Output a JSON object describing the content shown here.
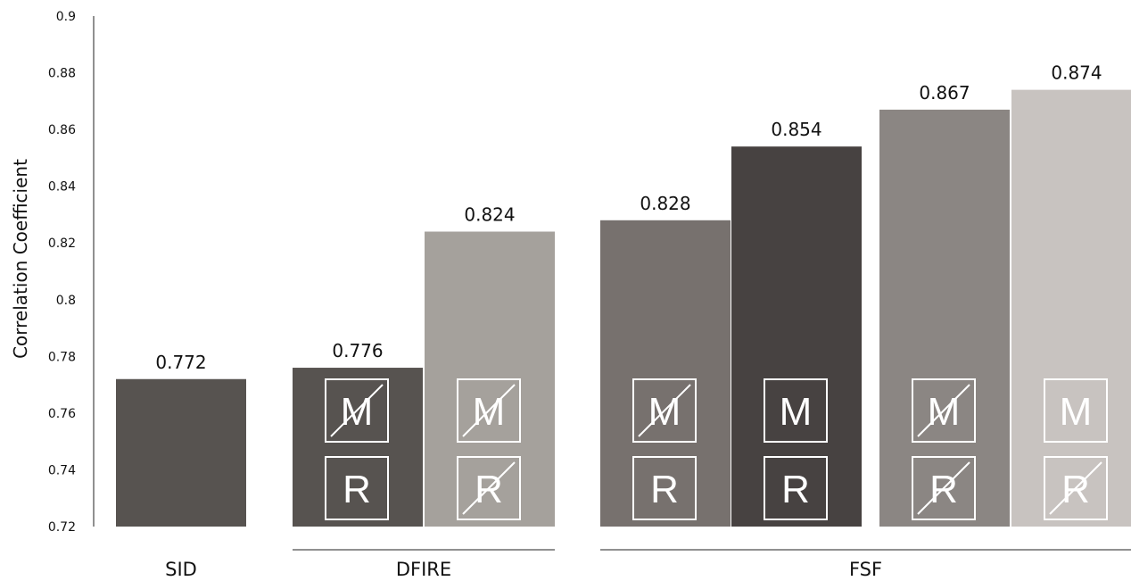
{
  "chart_data": {
    "type": "bar",
    "ylabel": "Correlation Coefficient",
    "ylim": [
      0.72,
      0.9
    ],
    "yticks": [
      "0.72",
      "0.74",
      "0.76",
      "0.78",
      "0.8",
      "0.82",
      "0.84",
      "0.86",
      "0.88",
      "0.9"
    ],
    "groups": [
      "SID",
      "DFIRE",
      "FSF"
    ],
    "bars": [
      {
        "group": "SID",
        "value": 0.772,
        "label": "0.772",
        "color": "#575350",
        "badges": []
      },
      {
        "group": "DFIRE",
        "value": 0.776,
        "label": "0.776",
        "color": "#575350",
        "badges": [
          {
            "letter": "M",
            "crossed": true
          },
          {
            "letter": "R",
            "crossed": false
          }
        ]
      },
      {
        "group": "DFIRE",
        "value": 0.824,
        "label": "0.824",
        "color": "#a5a19c",
        "badges": [
          {
            "letter": "M",
            "crossed": true
          },
          {
            "letter": "R",
            "crossed": true
          }
        ]
      },
      {
        "group": "FSF",
        "value": 0.828,
        "label": "0.828",
        "color": "#77716e",
        "badges": [
          {
            "letter": "M",
            "crossed": true
          },
          {
            "letter": "R",
            "crossed": false
          }
        ]
      },
      {
        "group": "FSF",
        "value": 0.854,
        "label": "0.854",
        "color": "#474241",
        "badges": [
          {
            "letter": "M",
            "crossed": false
          },
          {
            "letter": "R",
            "crossed": false
          }
        ]
      },
      {
        "group": "FSF",
        "value": 0.867,
        "label": "0.867",
        "color": "#8b8683",
        "badges": [
          {
            "letter": "M",
            "crossed": true
          },
          {
            "letter": "R",
            "crossed": true
          }
        ]
      },
      {
        "group": "FSF",
        "value": 0.874,
        "label": "0.874",
        "color": "#c8c3c0",
        "badges": [
          {
            "letter": "M",
            "crossed": false
          },
          {
            "letter": "R",
            "crossed": true
          }
        ]
      }
    ],
    "grid": false,
    "legend": "none"
  }
}
